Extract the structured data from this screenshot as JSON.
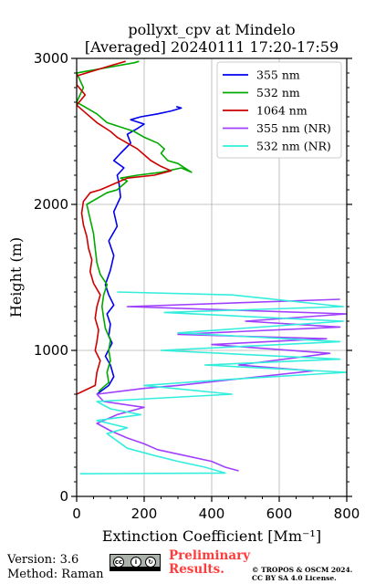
{
  "title_line1": "pollyxt_cpv at Mindelo",
  "title_line2": "[Averaged] 20240111 17:20-17:59",
  "footer": {
    "version": "Version: 3.6",
    "method": "Method: Raman",
    "preliminary_line1": "Preliminary",
    "preliminary_line2": "Results.",
    "copyright_line1": "© TROPOS & OSCM 2024.",
    "copyright_line2": "CC BY SA 4.0 License.",
    "license_badge_icons": [
      "cc-icon",
      "by-icon",
      "sa-icon"
    ]
  },
  "chart_data": {
    "type": "line",
    "title": "pollyxt_cpv at Mindelo [Averaged] 20240111 17:20-17:59",
    "xlabel": "Extinction Coefficient [Mm⁻¹]",
    "ylabel": "Height (m)",
    "xlim": [
      0,
      800
    ],
    "ylim": [
      0,
      3000
    ],
    "xticks": [
      0,
      200,
      400,
      600,
      800
    ],
    "yticks": [
      0,
      1000,
      2000,
      3000
    ],
    "grid": true,
    "legend_position": "top-right",
    "series": [
      {
        "name": "355 nm",
        "color": "#0000ee",
        "points": [
          [
            60,
            700
          ],
          [
            95,
            760
          ],
          [
            110,
            820
          ],
          [
            100,
            900
          ],
          [
            85,
            960
          ],
          [
            105,
            1050
          ],
          [
            95,
            1100
          ],
          [
            100,
            1180
          ],
          [
            90,
            1250
          ],
          [
            110,
            1310
          ],
          [
            95,
            1380
          ],
          [
            85,
            1450
          ],
          [
            100,
            1550
          ],
          [
            110,
            1650
          ],
          [
            95,
            1750
          ],
          [
            120,
            1850
          ],
          [
            110,
            1950
          ],
          [
            130,
            2050
          ],
          [
            125,
            2150
          ],
          [
            120,
            2200
          ],
          [
            140,
            2250
          ],
          [
            110,
            2300
          ],
          [
            130,
            2350
          ],
          [
            160,
            2420
          ],
          [
            150,
            2480
          ],
          [
            180,
            2520
          ],
          [
            200,
            2550
          ],
          [
            160,
            2580
          ],
          [
            190,
            2600
          ],
          [
            240,
            2620
          ],
          [
            280,
            2640
          ],
          [
            310,
            2660
          ],
          [
            295,
            2670
          ]
        ]
      },
      {
        "name": "532 nm",
        "color": "#00aa00",
        "points": [
          [
            65,
            720
          ],
          [
            95,
            780
          ],
          [
            90,
            850
          ],
          [
            100,
            930
          ],
          [
            95,
            1000
          ],
          [
            100,
            1070
          ],
          [
            85,
            1150
          ],
          [
            80,
            1220
          ],
          [
            75,
            1300
          ],
          [
            80,
            1380
          ],
          [
            90,
            1450
          ],
          [
            70,
            1520
          ],
          [
            60,
            1600
          ],
          [
            55,
            1700
          ],
          [
            50,
            1800
          ],
          [
            40,
            1900
          ],
          [
            30,
            2000
          ],
          [
            90,
            2080
          ],
          [
            120,
            2100
          ],
          [
            150,
            2160
          ],
          [
            130,
            2180
          ],
          [
            180,
            2200
          ],
          [
            250,
            2220
          ],
          [
            310,
            2250
          ],
          [
            340,
            2220
          ],
          [
            300,
            2280
          ],
          [
            270,
            2300
          ],
          [
            250,
            2350
          ],
          [
            260,
            2380
          ],
          [
            240,
            2420
          ],
          [
            200,
            2460
          ],
          [
            170,
            2500
          ],
          [
            90,
            2560
          ],
          [
            60,
            2620
          ],
          [
            30,
            2660
          ],
          [
            0,
            2700
          ],
          [
            20,
            2800
          ],
          [
            0,
            2900
          ],
          [
            170,
            2970
          ],
          [
            185,
            2980
          ]
        ]
      },
      {
        "name": "1064 nm",
        "color": "#cc0000",
        "points": [
          [
            0,
            700
          ],
          [
            55,
            760
          ],
          [
            60,
            850
          ],
          [
            70,
            930
          ],
          [
            55,
            1000
          ],
          [
            60,
            1060
          ],
          [
            65,
            1140
          ],
          [
            55,
            1220
          ],
          [
            60,
            1300
          ],
          [
            70,
            1380
          ],
          [
            50,
            1460
          ],
          [
            40,
            1540
          ],
          [
            45,
            1620
          ],
          [
            35,
            1700
          ],
          [
            30,
            1780
          ],
          [
            20,
            1860
          ],
          [
            15,
            1940
          ],
          [
            20,
            2020
          ],
          [
            40,
            2080
          ],
          [
            70,
            2100
          ],
          [
            110,
            2140
          ],
          [
            150,
            2180
          ],
          [
            230,
            2200
          ],
          [
            280,
            2230
          ],
          [
            250,
            2260
          ],
          [
            220,
            2300
          ],
          [
            200,
            2340
          ],
          [
            180,
            2380
          ],
          [
            150,
            2420
          ],
          [
            120,
            2460
          ],
          [
            100,
            2500
          ],
          [
            60,
            2560
          ],
          [
            30,
            2620
          ],
          [
            0,
            2680
          ],
          [
            25,
            2750
          ],
          [
            0,
            2820
          ],
          [
            0,
            2880
          ],
          [
            100,
            2950
          ],
          [
            145,
            2980
          ]
        ]
      },
      {
        "name": "355 nm (NR)",
        "color": "#a040ff",
        "points": [
          [
            480,
            175
          ],
          [
            440,
            200
          ],
          [
            400,
            240
          ],
          [
            320,
            280
          ],
          [
            240,
            320
          ],
          [
            200,
            360
          ],
          [
            150,
            400
          ],
          [
            100,
            450
          ],
          [
            60,
            500
          ],
          [
            120,
            560
          ],
          [
            200,
            610
          ],
          [
            80,
            650
          ],
          [
            60,
            700
          ],
          [
            200,
            740
          ],
          [
            300,
            760
          ],
          [
            460,
            800
          ],
          [
            700,
            860
          ],
          [
            480,
            900
          ],
          [
            750,
            980
          ],
          [
            400,
            1040
          ],
          [
            740,
            1080
          ],
          [
            300,
            1110
          ],
          [
            780,
            1160
          ],
          [
            500,
            1200
          ],
          [
            800,
            1250
          ],
          [
            150,
            1300
          ],
          [
            780,
            1350
          ]
        ]
      },
      {
        "name": "532 nm (NR)",
        "color": "#33eedd",
        "points": [
          [
            10,
            155
          ],
          [
            440,
            160
          ],
          [
            380,
            200
          ],
          [
            300,
            240
          ],
          [
            230,
            280
          ],
          [
            150,
            330
          ],
          [
            120,
            380
          ],
          [
            90,
            430
          ],
          [
            150,
            470
          ],
          [
            60,
            520
          ],
          [
            190,
            560
          ],
          [
            100,
            600
          ],
          [
            60,
            650
          ],
          [
            460,
            700
          ],
          [
            200,
            760
          ],
          [
            440,
            800
          ],
          [
            800,
            850
          ],
          [
            380,
            900
          ],
          [
            780,
            940
          ],
          [
            250,
            1000
          ],
          [
            780,
            1060
          ],
          [
            300,
            1120
          ],
          [
            790,
            1200
          ],
          [
            260,
            1260
          ],
          [
            790,
            1300
          ],
          [
            460,
            1380
          ],
          [
            120,
            1400
          ]
        ]
      }
    ]
  }
}
